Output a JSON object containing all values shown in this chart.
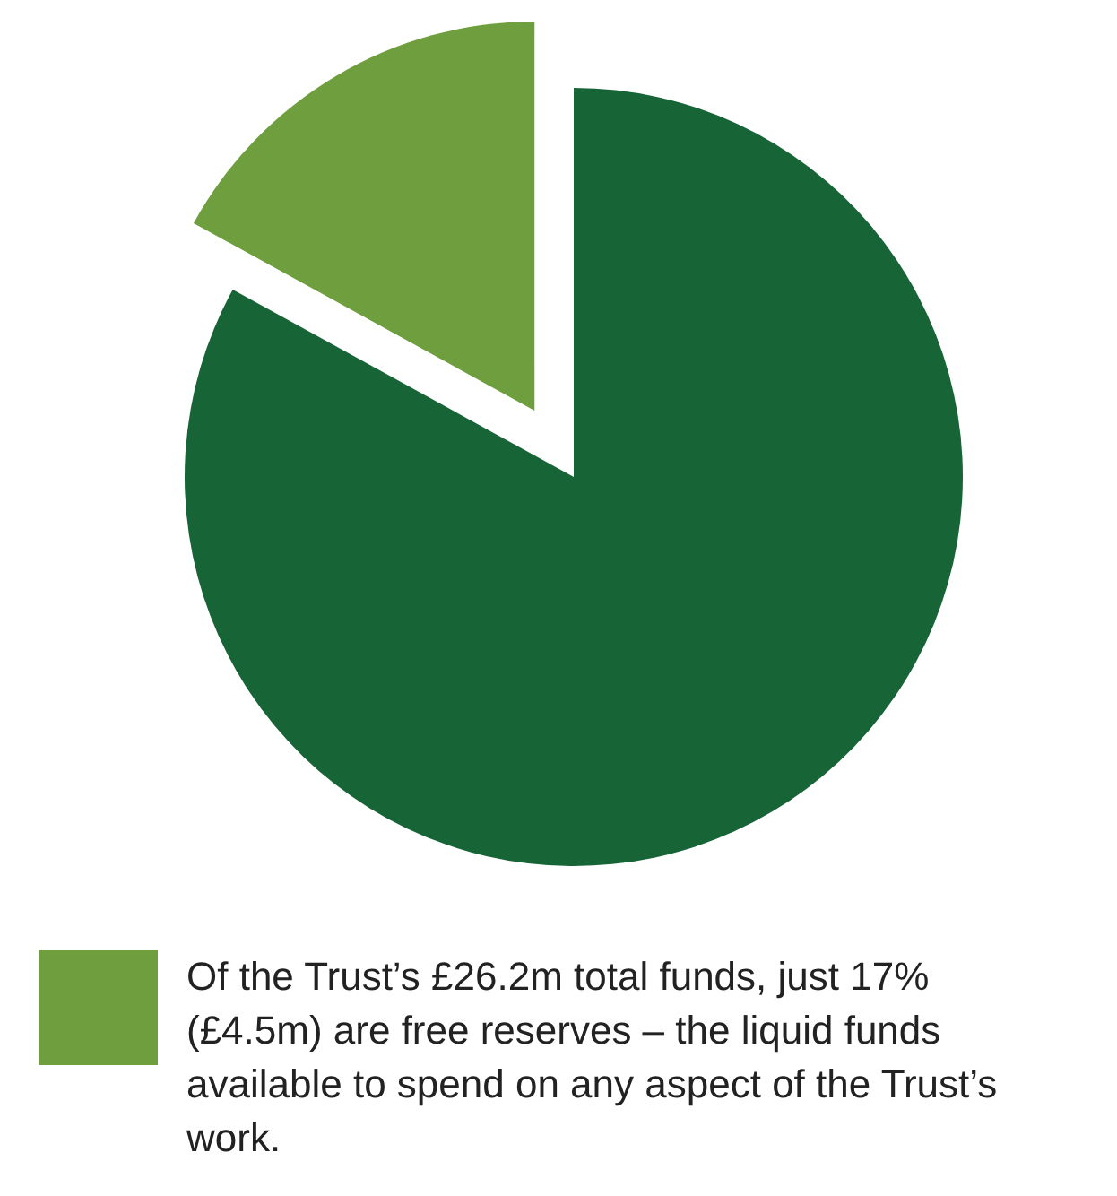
{
  "chart_data": {
    "type": "pie",
    "categories": [
      null,
      null
    ],
    "values": [
      17,
      83
    ],
    "colors": [
      "#6e9e3e",
      "#176437"
    ],
    "annotations": [
      "Of the Trust’s £26.2m total funds, just 17% (£4.5m) are free reserves – the liquid funds available to spend on any aspect of the Trust’s work."
    ]
  }
}
